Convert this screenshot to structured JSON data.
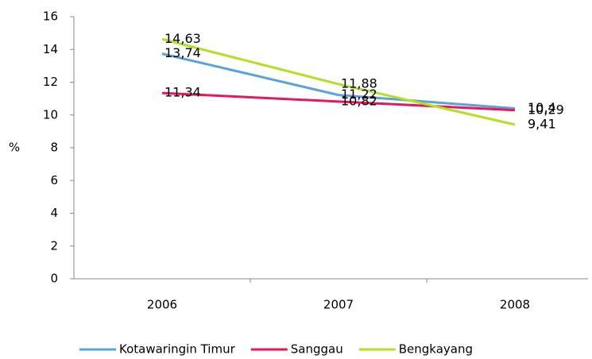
{
  "chart_data": {
    "type": "line",
    "y_label": "%",
    "categories": [
      "2006",
      "2007",
      "2008"
    ],
    "series": [
      {
        "name": "Kotawaringin Timur",
        "color": "#5ba3dd",
        "values": [
          13.74,
          11.22,
          10.4
        ],
        "value_labels": [
          "13,74",
          "11,22",
          "10,4"
        ]
      },
      {
        "name": "Sanggau",
        "color": "#e8175d",
        "values": [
          11.34,
          10.82,
          10.29
        ],
        "value_labels": [
          "11,34",
          "10,82",
          "10,29"
        ]
      },
      {
        "name": "Bengkayang",
        "color": "#b3e021",
        "values": [
          14.63,
          11.88,
          9.41
        ],
        "value_labels": [
          "14,63",
          "11,88",
          "9,41"
        ]
      }
    ],
    "ylim": [
      0,
      16
    ],
    "yticks": [
      0,
      2,
      4,
      6,
      8,
      10,
      12,
      14,
      16
    ],
    "legend": "bottom"
  }
}
